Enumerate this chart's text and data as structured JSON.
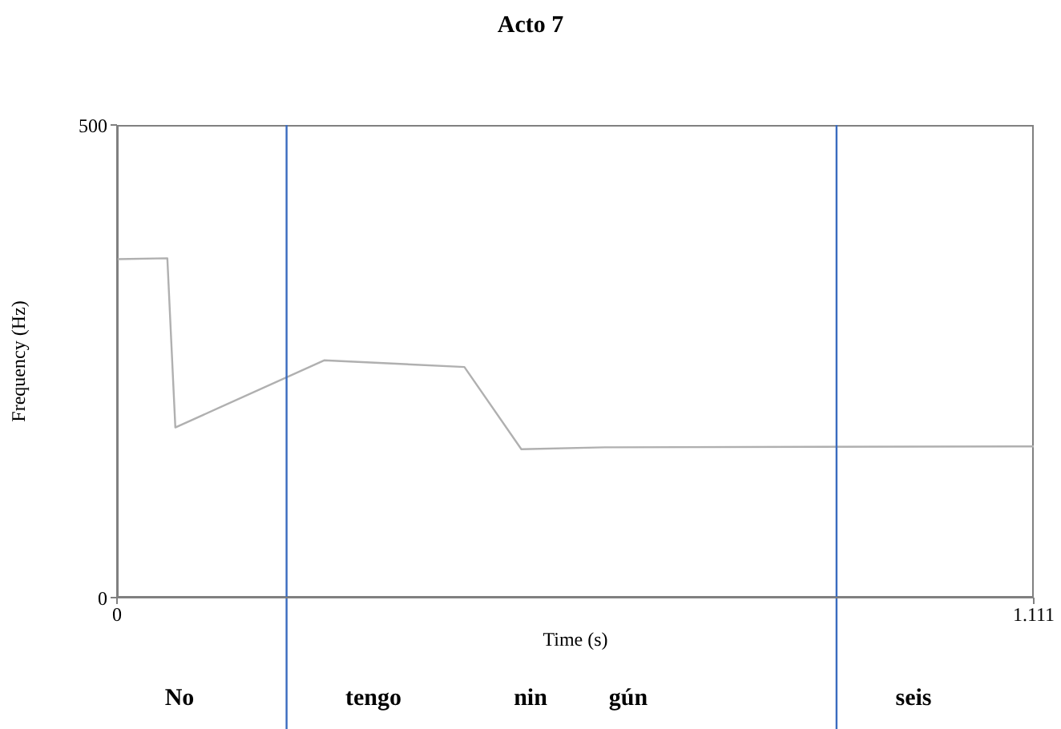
{
  "chart_data": {
    "type": "line",
    "title": "Acto 7",
    "xlabel": "Time (s)",
    "ylabel": "Frequency (Hz)",
    "x": [
      0,
      0.061,
      0.0707,
      0.251,
      0.421,
      0.49,
      0.591,
      1.111
    ],
    "series": [
      {
        "color": "#b0b0b0",
        "values": [
          358,
          359,
          180,
          251,
          244,
          157,
          159,
          160
        ]
      }
    ],
    "xlim": [
      0,
      1.111
    ],
    "xticks": [
      0,
      1.111
    ],
    "ylim": [
      0,
      500
    ],
    "yticks": [
      0,
      500
    ],
    "grid": false,
    "legend": false,
    "marker": "none",
    "line_style": "solid",
    "ref_lines": [
      {
        "axis": "x",
        "value": 0.2055,
        "color": "#3a6bbf"
      },
      {
        "axis": "x",
        "value": 0.872,
        "color": "#3a6bbf"
      }
    ],
    "annotations": [
      "No",
      "tengo",
      "nin",
      "gún",
      "seis"
    ]
  }
}
